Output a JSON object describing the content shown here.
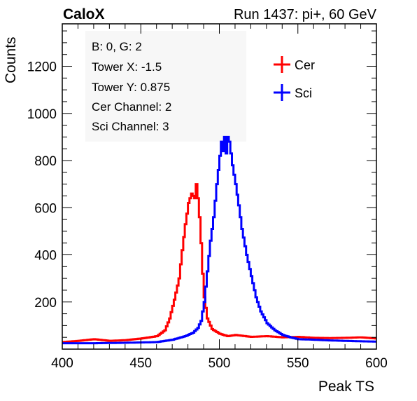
{
  "header": {
    "brand": "CaloX",
    "run": "Run 1437: pi+, 60 GeV"
  },
  "info_box": {
    "lines": [
      "B: 0, G: 2",
      "Tower X: -1.5",
      "Tower Y: 0.875",
      "Cer Channel: 2",
      "Sci Channel: 3"
    ]
  },
  "colors": {
    "cer": "#ff0000",
    "sci": "#0000ff",
    "info_bg": "#f7f7f7"
  },
  "chart_data": {
    "type": "line",
    "xlabel": "Peak TS",
    "ylabel": "Counts",
    "xlim": [
      400,
      600
    ],
    "ylim": [
      0,
      1380
    ],
    "x_ticks": [
      400,
      450,
      500,
      550,
      600
    ],
    "y_ticks": [
      200,
      400,
      600,
      800,
      1000,
      1200
    ],
    "legend": {
      "placement": "top-right"
    },
    "series": [
      {
        "name": "Cer",
        "color": "#ff0000",
        "points": [
          [
            400,
            30
          ],
          [
            410,
            35
          ],
          [
            420,
            42
          ],
          [
            430,
            35
          ],
          [
            440,
            38
          ],
          [
            450,
            45
          ],
          [
            460,
            55
          ],
          [
            465,
            80
          ],
          [
            468,
            130
          ],
          [
            471,
            210
          ],
          [
            474,
            300
          ],
          [
            476,
            420
          ],
          [
            478,
            530
          ],
          [
            480,
            620
          ],
          [
            482,
            660
          ],
          [
            484,
            640
          ],
          [
            485,
            700
          ],
          [
            486,
            640
          ],
          [
            487,
            560
          ],
          [
            488,
            450
          ],
          [
            489,
            320
          ],
          [
            490,
            220
          ],
          [
            492,
            130
          ],
          [
            495,
            85
          ],
          [
            500,
            65
          ],
          [
            505,
            55
          ],
          [
            510,
            60
          ],
          [
            520,
            52
          ],
          [
            530,
            55
          ],
          [
            540,
            50
          ],
          [
            550,
            52
          ],
          [
            560,
            48
          ],
          [
            570,
            47
          ],
          [
            580,
            48
          ],
          [
            590,
            50
          ],
          [
            600,
            45
          ]
        ]
      },
      {
        "name": "Sci",
        "color": "#0000ff",
        "points": [
          [
            400,
            25
          ],
          [
            420,
            25
          ],
          [
            440,
            27
          ],
          [
            460,
            30
          ],
          [
            470,
            40
          ],
          [
            478,
            55
          ],
          [
            483,
            70
          ],
          [
            486,
            90
          ],
          [
            488,
            120
          ],
          [
            490,
            200
          ],
          [
            492,
            330
          ],
          [
            494,
            460
          ],
          [
            496,
            560
          ],
          [
            498,
            700
          ],
          [
            500,
            820
          ],
          [
            501,
            880
          ],
          [
            502,
            840
          ],
          [
            503,
            900
          ],
          [
            504,
            830
          ],
          [
            505,
            900
          ],
          [
            506,
            880
          ],
          [
            508,
            780
          ],
          [
            510,
            700
          ],
          [
            512,
            610
          ],
          [
            514,
            510
          ],
          [
            517,
            400
          ],
          [
            520,
            310
          ],
          [
            523,
            220
          ],
          [
            526,
            160
          ],
          [
            530,
            110
          ],
          [
            535,
            80
          ],
          [
            540,
            60
          ],
          [
            545,
            50
          ],
          [
            550,
            42
          ],
          [
            560,
            40
          ],
          [
            570,
            37
          ],
          [
            580,
            35
          ],
          [
            590,
            33
          ],
          [
            600,
            32
          ]
        ]
      }
    ]
  }
}
